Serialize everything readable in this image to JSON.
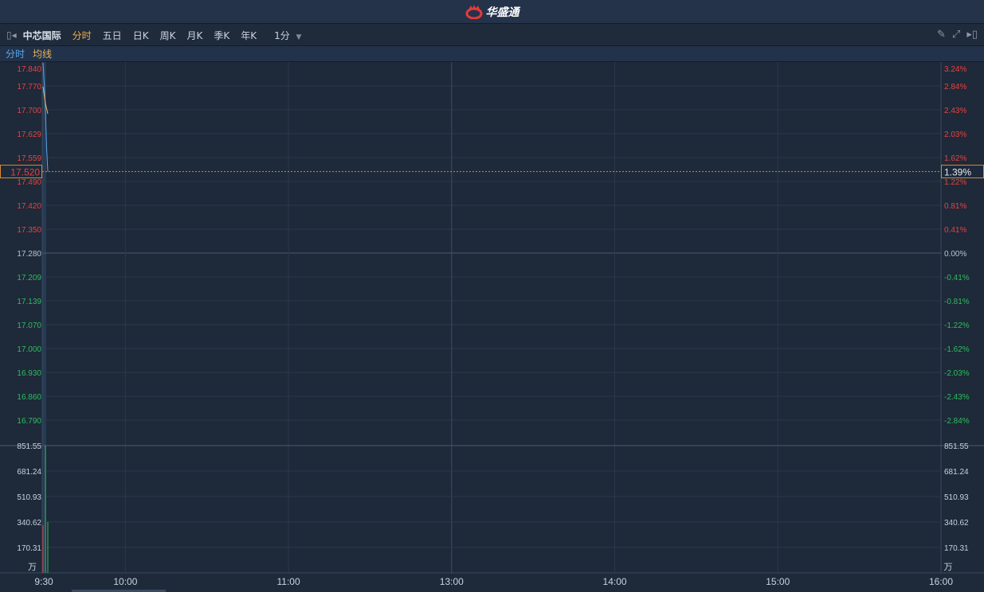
{
  "app": {
    "title": "华盛通"
  },
  "toolbar": {
    "stock_name": "中芯国际",
    "tabs": [
      "分时",
      "五日",
      "日K",
      "周K",
      "月K",
      "季K",
      "年K"
    ],
    "active_tab": "分时",
    "interval": "1分"
  },
  "legend": {
    "price": "分时",
    "avg": "均线"
  },
  "colors": {
    "up": "#e8423f",
    "down": "#2dbd5c",
    "price_line": "#5aa8ec",
    "avg_line": "#e9b457",
    "active": "#f0b24a",
    "crosshair": "#e08a2c"
  },
  "chart_data": {
    "type": "line",
    "prev_close": 17.28,
    "price_ticks": [
      "17.840",
      "17.770",
      "17.700",
      "17.629",
      "17.559",
      "17.490",
      "17.420",
      "17.350",
      "17.280",
      "17.209",
      "17.139",
      "17.070",
      "17.000",
      "16.930",
      "16.860",
      "16.790"
    ],
    "pct_ticks": [
      "3.24%",
      "2.84%",
      "2.43%",
      "2.03%",
      "1.62%",
      "1.22%",
      "0.81%",
      "0.41%",
      "0.00%",
      "-0.41%",
      "-0.81%",
      "-1.22%",
      "-1.62%",
      "-2.03%",
      "-2.43%",
      "-2.84%"
    ],
    "current_price": "17.520",
    "current_pct": "1.39%",
    "time_ticks": [
      "9:30",
      "10:00",
      "11:00",
      "13:00",
      "14:00",
      "15:00",
      "16:00"
    ],
    "volume_ticks": [
      "851.55",
      "681.24",
      "510.93",
      "340.62",
      "170.31"
    ],
    "volume_unit": "万",
    "series": [
      {
        "name": "分时",
        "x": [
          "9:30",
          "9:30.5",
          "9:31",
          "9:31.5",
          "9:32"
        ],
        "values": [
          17.84,
          17.78,
          17.7,
          17.59,
          17.52
        ]
      },
      {
        "name": "均线",
        "x": [
          "9:30",
          "9:31",
          "9:32"
        ],
        "values": [
          17.77,
          17.72,
          17.69
        ]
      }
    ],
    "volume": {
      "x": [
        "9:30",
        "9:31",
        "9:32"
      ],
      "values": [
        320,
        851.55,
        340
      ],
      "direction": [
        "up",
        "down",
        "down"
      ]
    }
  }
}
